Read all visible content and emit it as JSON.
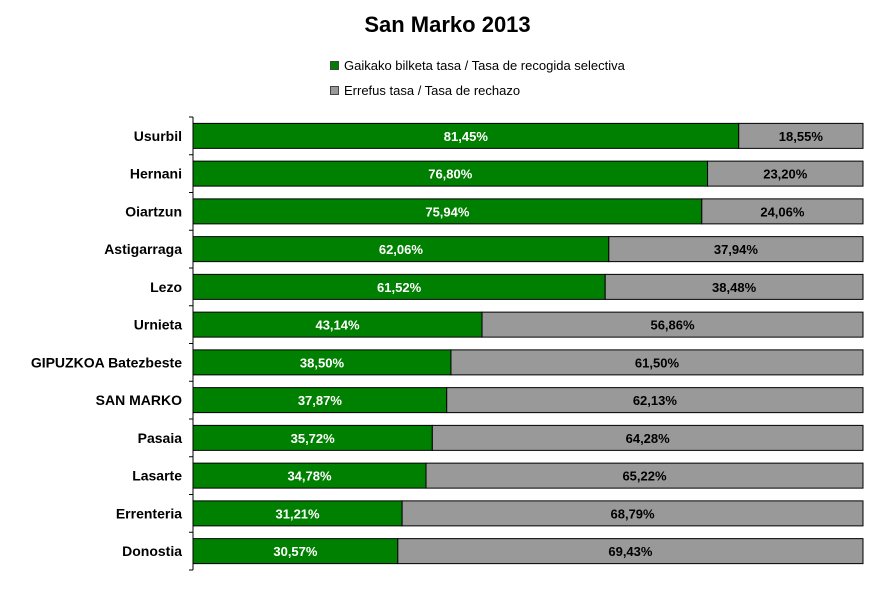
{
  "chart_data": {
    "type": "bar",
    "orientation": "horizontal",
    "stacked": true,
    "title": "San Marko 2013",
    "categories": [
      "Usurbil",
      "Hernani",
      "Oiartzun",
      "Astigarraga",
      "Lezo",
      "Urnieta",
      "GIPUZKOA Batezbeste",
      "SAN MARKO",
      "Pasaia",
      "Lasarte",
      "Errenteria",
      "Donostia"
    ],
    "series": [
      {
        "name": "Gaikako bilketa tasa / Tasa de recogida selectiva",
        "color": "#008000",
        "label_color": "#ffffff",
        "values": [
          81.45,
          76.8,
          75.94,
          62.06,
          61.52,
          43.14,
          38.5,
          37.87,
          35.72,
          34.78,
          31.21,
          30.57
        ],
        "labels": [
          "81,45%",
          "76,80%",
          "75,94%",
          "62,06%",
          "61,52%",
          "43,14%",
          "38,50%",
          "37,87%",
          "35,72%",
          "34,78%",
          "31,21%",
          "30,57%"
        ]
      },
      {
        "name": "Errefus tasa / Tasa de rechazo",
        "color": "#999999",
        "label_color": "#000000",
        "values": [
          18.55,
          23.2,
          24.06,
          37.94,
          38.48,
          56.86,
          61.5,
          62.13,
          64.28,
          65.22,
          68.79,
          69.43
        ],
        "labels": [
          "18,55%",
          "23,20%",
          "24,06%",
          "37,94%",
          "38,48%",
          "56,86%",
          "61,50%",
          "62,13%",
          "64,28%",
          "65,22%",
          "68,79%",
          "69,43%"
        ]
      }
    ],
    "xlim": [
      0,
      100
    ],
    "grid": false,
    "legend_position": "top-center"
  }
}
